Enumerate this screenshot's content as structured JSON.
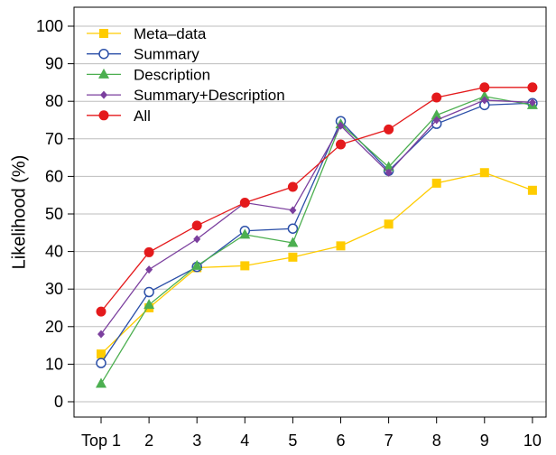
{
  "chart_data": {
    "type": "line",
    "title": "",
    "xlabel": "",
    "ylabel": "Likelihood (%)",
    "categories": [
      "Top 1",
      "2",
      "3",
      "4",
      "5",
      "6",
      "7",
      "8",
      "9",
      "10"
    ],
    "y_ticks": [
      "0",
      "10",
      "20",
      "30",
      "40",
      "50",
      "60",
      "70",
      "80",
      "90",
      "100"
    ],
    "ylim": [
      0,
      100
    ],
    "grid": true,
    "legend_position": "top-left",
    "series": [
      {
        "name": "Meta–data",
        "color": "#ffcc00",
        "marker": "square",
        "values": [
          12.7,
          25.0,
          35.7,
          36.2,
          38.5,
          41.5,
          47.3,
          58.2,
          61.0,
          56.3
        ]
      },
      {
        "name": "Summary",
        "color": "#2b4fa8",
        "marker": "circle-open",
        "values": [
          10.3,
          29.2,
          35.9,
          45.5,
          46.1,
          74.7,
          61.5,
          74.0,
          79.0,
          79.5
        ]
      },
      {
        "name": "Description",
        "color": "#4caf50",
        "marker": "triangle",
        "values": [
          4.8,
          25.8,
          36.2,
          44.5,
          42.3,
          73.9,
          62.5,
          76.3,
          81.3,
          79.0
        ]
      },
      {
        "name": "Summary+Description",
        "color": "#7b3f9e",
        "marker": "diamond",
        "values": [
          18.0,
          35.2,
          43.3,
          53.0,
          51.0,
          73.5,
          61.0,
          75.0,
          80.3,
          79.7
        ]
      },
      {
        "name": "All",
        "color": "#e41a1c",
        "marker": "circle-filled",
        "values": [
          24.0,
          39.8,
          46.9,
          53.0,
          57.2,
          68.5,
          72.5,
          81.0,
          83.7,
          83.7
        ]
      }
    ]
  }
}
